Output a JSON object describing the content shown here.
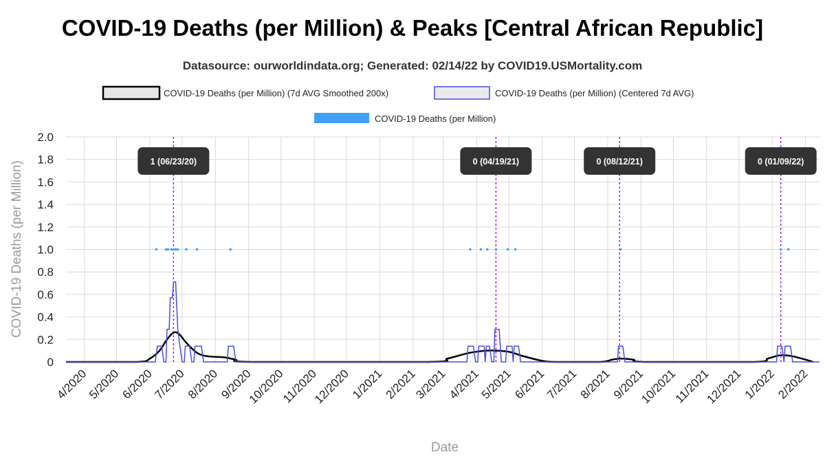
{
  "chart_data": {
    "type": "line",
    "title": "COVID-19 Deaths (per Million) & Peaks [Central African Republic]",
    "subtitle": "Datasource: ourworldindata.org; Generated: 02/14/22 by COVID19.USMortality.com",
    "xlabel": "Date",
    "ylabel": "COVID-19 Deaths (per Million)",
    "ylim": [
      0,
      2.0
    ],
    "xlim": [
      "2020-03-15",
      "2022-02-14"
    ],
    "y_ticks": [
      "0",
      "0.2",
      "0.4",
      "0.6",
      "0.8",
      "1.0",
      "1.2",
      "1.4",
      "1.6",
      "1.8",
      "2.0"
    ],
    "x_tick_dates": [
      "2020-04-01",
      "2020-05-01",
      "2020-06-01",
      "2020-07-01",
      "2020-08-01",
      "2020-09-01",
      "2020-10-01",
      "2020-11-01",
      "2020-12-01",
      "2021-01-01",
      "2021-02-01",
      "2021-03-01",
      "2021-04-01",
      "2021-05-01",
      "2021-06-01",
      "2021-07-01",
      "2021-08-01",
      "2021-09-01",
      "2021-10-01",
      "2021-11-01",
      "2021-12-01",
      "2022-01-01",
      "2022-02-01"
    ],
    "x_tick_labels": [
      "4/2020",
      "5/2020",
      "6/2020",
      "7/2020",
      "8/2020",
      "9/2020",
      "10/2020",
      "11/2020",
      "12/2020",
      "1/2021",
      "2/2021",
      "3/2021",
      "4/2021",
      "5/2021",
      "6/2021",
      "7/2021",
      "8/2021",
      "9/2021",
      "10/2021",
      "11/2021",
      "12/2021",
      "1/2022",
      "2/2022"
    ],
    "grid": true,
    "legend_position": "top-center",
    "series": [
      {
        "name": "COVID-19 Deaths (per Million) (7d AVG Smoothed 200x)",
        "style": "line",
        "color": "#000000",
        "points": [
          [
            "2020-03-15",
            0
          ],
          [
            "2020-05-20",
            0
          ],
          [
            "2020-06-01",
            0.03
          ],
          [
            "2020-06-10",
            0.1
          ],
          [
            "2020-06-17",
            0.2
          ],
          [
            "2020-06-23",
            0.26
          ],
          [
            "2020-06-28",
            0.25
          ],
          [
            "2020-07-05",
            0.17
          ],
          [
            "2020-07-15",
            0.08
          ],
          [
            "2020-07-25",
            0.05
          ],
          [
            "2020-08-10",
            0.04
          ],
          [
            "2020-08-20",
            0.02
          ],
          [
            "2020-09-05",
            0
          ],
          [
            "2021-02-15",
            0
          ],
          [
            "2021-03-05",
            0.03
          ],
          [
            "2021-03-25",
            0.08
          ],
          [
            "2021-04-10",
            0.1
          ],
          [
            "2021-04-19",
            0.1
          ],
          [
            "2021-05-01",
            0.09
          ],
          [
            "2021-05-15",
            0.05
          ],
          [
            "2021-06-01",
            0.01
          ],
          [
            "2021-06-15",
            0
          ],
          [
            "2021-07-25",
            0
          ],
          [
            "2021-08-05",
            0.02
          ],
          [
            "2021-08-13",
            0.03
          ],
          [
            "2021-08-25",
            0.02
          ],
          [
            "2021-09-05",
            0
          ],
          [
            "2021-12-15",
            0
          ],
          [
            "2021-12-28",
            0.03
          ],
          [
            "2022-01-09",
            0.06
          ],
          [
            "2022-01-20",
            0.05
          ],
          [
            "2022-02-01",
            0.02
          ],
          [
            "2022-02-08",
            0
          ]
        ]
      },
      {
        "name": "COVID-19 Deaths (per Million) (Centered 7d AVG)",
        "style": "step",
        "color": "#4b4bdc",
        "points": [
          [
            "2020-03-15",
            0
          ],
          [
            "2020-06-06",
            0
          ],
          [
            "2020-06-08",
            0.14
          ],
          [
            "2020-06-12",
            0.14
          ],
          [
            "2020-06-14",
            0
          ],
          [
            "2020-06-16",
            0
          ],
          [
            "2020-06-17",
            0.29
          ],
          [
            "2020-06-19",
            0.29
          ],
          [
            "2020-06-20",
            0.57
          ],
          [
            "2020-06-22",
            0.57
          ],
          [
            "2020-06-23",
            0.71
          ],
          [
            "2020-06-25",
            0.71
          ],
          [
            "2020-06-27",
            0.29
          ],
          [
            "2020-06-29",
            0.14
          ],
          [
            "2020-07-01",
            0
          ],
          [
            "2020-07-03",
            0
          ],
          [
            "2020-07-04",
            0.14
          ],
          [
            "2020-07-08",
            0.14
          ],
          [
            "2020-07-10",
            0
          ],
          [
            "2020-07-12",
            0
          ],
          [
            "2020-07-13",
            0.14
          ],
          [
            "2020-07-19",
            0.14
          ],
          [
            "2020-07-21",
            0
          ],
          [
            "2020-08-12",
            0
          ],
          [
            "2020-08-13",
            0.14
          ],
          [
            "2020-08-18",
            0.14
          ],
          [
            "2020-08-20",
            0
          ],
          [
            "2021-03-23",
            0
          ],
          [
            "2021-03-24",
            0.14
          ],
          [
            "2021-03-29",
            0.14
          ],
          [
            "2021-03-31",
            0
          ],
          [
            "2021-04-02",
            0
          ],
          [
            "2021-04-03",
            0.14
          ],
          [
            "2021-04-08",
            0.14
          ],
          [
            "2021-04-09",
            0
          ],
          [
            "2021-04-10",
            0.14
          ],
          [
            "2021-04-13",
            0.14
          ],
          [
            "2021-04-15",
            0
          ],
          [
            "2021-04-17",
            0
          ],
          [
            "2021-04-18",
            0.29
          ],
          [
            "2021-04-22",
            0.29
          ],
          [
            "2021-04-24",
            0
          ],
          [
            "2021-04-28",
            0
          ],
          [
            "2021-04-29",
            0.14
          ],
          [
            "2021-05-04",
            0.14
          ],
          [
            "2021-05-05",
            0
          ],
          [
            "2021-05-06",
            0.14
          ],
          [
            "2021-05-10",
            0.14
          ],
          [
            "2021-05-12",
            0
          ],
          [
            "2021-08-10",
            0
          ],
          [
            "2021-08-11",
            0.14
          ],
          [
            "2021-08-15",
            0.14
          ],
          [
            "2021-08-17",
            0
          ],
          [
            "2022-01-05",
            0
          ],
          [
            "2022-01-06",
            0.14
          ],
          [
            "2022-01-10",
            0.14
          ],
          [
            "2022-01-12",
            0
          ],
          [
            "2022-01-13",
            0.14
          ],
          [
            "2022-01-18",
            0.14
          ],
          [
            "2022-01-20",
            0
          ],
          [
            "2022-02-14",
            0
          ]
        ]
      },
      {
        "name": "COVID-19 Deaths (per Million)",
        "style": "points",
        "color": "#3fa0f5",
        "points": [
          [
            "2020-06-07",
            1
          ],
          [
            "2020-06-16",
            1
          ],
          [
            "2020-06-18",
            1
          ],
          [
            "2020-06-21",
            1
          ],
          [
            "2020-06-23",
            1
          ],
          [
            "2020-06-25",
            1
          ],
          [
            "2020-06-27",
            1
          ],
          [
            "2020-07-05",
            1
          ],
          [
            "2020-07-15",
            1
          ],
          [
            "2020-08-15",
            1
          ],
          [
            "2021-03-26",
            1
          ],
          [
            "2021-04-05",
            1
          ],
          [
            "2021-04-11",
            1
          ],
          [
            "2021-04-19",
            1
          ],
          [
            "2021-04-30",
            1
          ],
          [
            "2021-05-07",
            1
          ],
          [
            "2021-08-13",
            1
          ],
          [
            "2022-01-09",
            1
          ],
          [
            "2022-01-16",
            1
          ]
        ]
      }
    ],
    "peaks": [
      {
        "date": "2020-06-23",
        "label": "1 (06/23/20)"
      },
      {
        "date": "2021-04-19",
        "label": "0 (04/19/21)"
      },
      {
        "date": "2021-08-12",
        "label": "0 (08/12/21)"
      },
      {
        "date": "2022-01-09",
        "label": "0 (01/09/22)"
      }
    ],
    "colors": {
      "peak_line": "#a020f0",
      "peak_label_bg": "#333333",
      "grid": "#d9d9d9",
      "legend_smoothed_fill": "#e6e6e6",
      "legend_centered_fill": "#ebebeb"
    }
  }
}
